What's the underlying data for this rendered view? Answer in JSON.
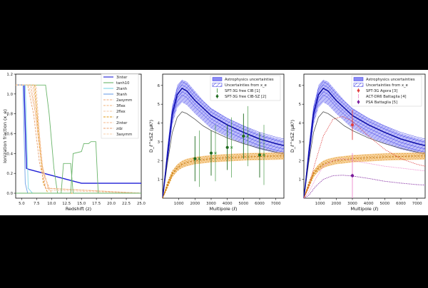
{
  "chart_data": [
    {
      "type": "line",
      "xlabel": "Redshift (z)",
      "ylabel": "Ionization fraction (x_e)",
      "xlim": [
        4,
        25
      ],
      "ylim": [
        -0.05,
        1.2
      ],
      "xticks": [
        "5.0",
        "7.5",
        "10.0",
        "12.5",
        "15.0",
        "17.5",
        "20.0",
        "22.5",
        "25.0"
      ],
      "yticks": [
        "0.0",
        "0.2",
        "0.4",
        "0.6",
        "0.8",
        "1.0",
        "1.2"
      ],
      "legend_position": "top-right",
      "series": [
        {
          "name": "3inter",
          "color": "#1f1fd6",
          "dash": "solid",
          "x": [
            4,
            5.4,
            5.8,
            6.2,
            15,
            15.8,
            25
          ],
          "y": [
            1.09,
            1.09,
            0.25,
            0.24,
            0.1,
            0.1,
            0.1
          ]
        },
        {
          "name": "tanh10",
          "color": "#6ab56a",
          "dash": "solid",
          "x": [
            4,
            9.0,
            9.6,
            10.4,
            11.0,
            25
          ],
          "y": [
            1.09,
            1.09,
            0.8,
            0.25,
            0.0,
            0.0
          ]
        },
        {
          "name": "2tanh",
          "color": "#7fd6e6",
          "dash": "solid",
          "x": [
            4,
            5.6,
            6.1,
            6.8,
            25
          ],
          "y": [
            1.09,
            1.09,
            0.05,
            0.0,
            0.0
          ]
        },
        {
          "name": "3tanh",
          "color": "#6fa0e6",
          "dash": "solid",
          "x": [
            4,
            5.2,
            5.6,
            6.0,
            25
          ],
          "y": [
            1.09,
            1.09,
            0.1,
            0.0,
            0.0
          ]
        },
        {
          "name": "2asymm",
          "color": "#f0a878",
          "dash": "dashed",
          "x": [
            4,
            6.5,
            7.3,
            8.3,
            9.5,
            25
          ],
          "y": [
            1.09,
            1.09,
            0.8,
            0.3,
            0.05,
            0.0
          ]
        },
        {
          "name": "3flex",
          "color": "#f2b57c",
          "dash": "dashed",
          "x": [
            4,
            7.0,
            7.8,
            8.6,
            10.0,
            25
          ],
          "y": [
            1.09,
            1.09,
            0.7,
            0.2,
            0.0,
            0.0
          ]
        },
        {
          "name": "2flex",
          "color": "#f6c8a4",
          "dash": "dashed",
          "x": [
            4,
            6.8,
            7.5,
            8.4,
            9.6,
            25
          ],
          "y": [
            1.09,
            1.09,
            0.75,
            0.25,
            0.03,
            0.0
          ]
        },
        {
          "name": "z",
          "color": "#e09a16",
          "dash": "dashed",
          "x": [
            4,
            7.2,
            7.8,
            8.6,
            9.4,
            25
          ],
          "y": [
            1.09,
            1.09,
            0.6,
            0.1,
            0.0,
            0.0
          ]
        },
        {
          "name": "2inter",
          "color": "#f4b98e",
          "dash": "dashed",
          "x": [
            4,
            7.4,
            8.2,
            9.0,
            25
          ],
          "y": [
            1.09,
            1.09,
            0.4,
            0.05,
            0.0
          ]
        },
        {
          "name": "zdz",
          "color": "#e8a070",
          "dash": "dashed",
          "x": [
            4,
            6.0,
            7.0,
            8.0,
            9.0,
            25
          ],
          "y": [
            1.09,
            1.09,
            0.8,
            0.3,
            0.05,
            0.0
          ]
        },
        {
          "name": "3asymm",
          "color": "#f7cfa8",
          "dash": "dashed",
          "x": [
            4,
            6.2,
            7.2,
            8.2,
            9.4,
            25
          ],
          "y": [
            1.09,
            1.09,
            0.85,
            0.35,
            0.05,
            0.0
          ]
        },
        {
          "name": "",
          "color": "#6ab56a",
          "dash": "solid",
          "x": [
            4,
            13.2,
            13.6,
            15.0,
            15.4,
            16.2,
            16.6,
            17.4,
            17.8,
            25
          ],
          "y": [
            0.0,
            0.0,
            0.4,
            0.42,
            0.5,
            0.5,
            0.52,
            0.52,
            0.0,
            0.0
          ]
        },
        {
          "name": "",
          "color": "#6ab56a",
          "dash": "solid",
          "x": [
            4,
            11.6,
            12.0,
            13.2,
            13.6,
            25
          ],
          "y": [
            0.0,
            0.0,
            0.3,
            0.3,
            0.0,
            0.0
          ]
        }
      ]
    },
    {
      "type": "line",
      "xlabel": "Multipole (ℓ)",
      "ylabel": "D_ℓ^kSZ (μK²)",
      "xlim": [
        0,
        7500
      ],
      "ylim": [
        0,
        6.6
      ],
      "xticks": [
        "1000",
        "2000",
        "3000",
        "4000",
        "5000",
        "6000",
        "7000"
      ],
      "yticks": [
        "1",
        "2",
        "3",
        "4",
        "5",
        "6"
      ],
      "legend_position": "top-right",
      "legend": [
        {
          "label": "Astrophysics uncertainties",
          "kind": "band",
          "color": "#6a6af0"
        },
        {
          "label": "Uncertainties from x_e",
          "kind": "hatch",
          "color": "#5a5ae6"
        },
        {
          "label": "SPT-3G free CIB  [1]",
          "kind": "errorbar",
          "color": "#2e8b2e"
        },
        {
          "label": "SPT-3G free CIB-SZ  [2]",
          "kind": "point",
          "color": "#1d6b1d"
        }
      ],
      "curves": {
        "ell": [
          0,
          300,
          600,
          900,
          1200,
          1500,
          2000,
          2500,
          3000,
          4000,
          5000,
          6000,
          7000,
          7500
        ],
        "blue_center": [
          0.0,
          2.3,
          4.5,
          5.5,
          5.85,
          5.7,
          5.2,
          4.8,
          4.4,
          3.9,
          3.5,
          3.15,
          2.9,
          2.8
        ],
        "blue_upper": [
          0.0,
          2.5,
          4.9,
          6.0,
          6.3,
          6.2,
          5.7,
          5.2,
          4.8,
          4.25,
          3.85,
          3.45,
          3.2,
          3.1
        ],
        "blue_lower": [
          0.0,
          2.0,
          3.9,
          4.8,
          5.1,
          4.95,
          4.5,
          4.1,
          3.7,
          3.25,
          2.9,
          2.6,
          2.4,
          2.3
        ],
        "grey_center": [
          0.0,
          1.9,
          3.5,
          4.3,
          4.6,
          4.5,
          4.2,
          3.85,
          3.6,
          3.2,
          2.9,
          2.65,
          2.45,
          2.35
        ],
        "orange_center": [
          0.0,
          0.7,
          1.3,
          1.6,
          1.8,
          1.9,
          2.0,
          2.05,
          2.1,
          2.15,
          2.2,
          2.22,
          2.24,
          2.25
        ],
        "orange_upper": [
          0.0,
          0.8,
          1.45,
          1.8,
          2.0,
          2.1,
          2.2,
          2.25,
          2.3,
          2.35,
          2.4,
          2.42,
          2.44,
          2.45
        ],
        "orange_lower": [
          0.0,
          0.6,
          1.15,
          1.45,
          1.6,
          1.7,
          1.8,
          1.85,
          1.9,
          1.95,
          2.0,
          2.02,
          2.04,
          2.05
        ]
      },
      "points": [
        {
          "label": "SPT-3G free CIB  [1]",
          "ell": 2000,
          "value": 2.1,
          "err": 1.5,
          "marker": "x"
        },
        {
          "label": "SPT-3G free CIB  [1]",
          "ell": 3000,
          "value": 2.4,
          "err": 1.5,
          "marker": "x"
        },
        {
          "label": "SPT-3G free CIB  [1]",
          "ell": 4000,
          "value": 2.7,
          "err": 1.6,
          "marker": "x"
        },
        {
          "label": "SPT-3G free CIB  [1]",
          "ell": 5000,
          "value": 3.3,
          "err": 1.6,
          "marker": "x"
        },
        {
          "label": "SPT-3G free CIB  [1]",
          "ell": 6000,
          "value": 2.3,
          "err": 1.6,
          "marker": "x"
        },
        {
          "label": "SPT-3G free CIB-SZ  [2]",
          "ell": 2000,
          "value": 2.1,
          "err": 1.2,
          "marker": "dot"
        },
        {
          "label": "SPT-3G free CIB-SZ  [2]",
          "ell": 3000,
          "value": 2.4,
          "err": 1.2,
          "marker": "dot"
        },
        {
          "label": "SPT-3G free CIB-SZ  [2]",
          "ell": 4000,
          "value": 2.7,
          "err": 1.2,
          "marker": "dot"
        },
        {
          "label": "SPT-3G free CIB-SZ  [2]",
          "ell": 5000,
          "value": 3.3,
          "err": 1.2,
          "marker": "dot"
        },
        {
          "label": "SPT-3G free CIB-SZ  [2]",
          "ell": 6000,
          "value": 2.3,
          "err": 1.2,
          "marker": "dot"
        }
      ]
    },
    {
      "type": "line",
      "xlabel": "Multipole (ℓ)",
      "ylabel": "D_ℓ^kSZ (μK²)",
      "xlim": [
        0,
        7500
      ],
      "ylim": [
        0,
        6.6
      ],
      "xticks": [
        "1000",
        "2000",
        "3000",
        "4000",
        "5000",
        "6000",
        "7000"
      ],
      "yticks": [
        "1",
        "2",
        "3",
        "4",
        "5",
        "6"
      ],
      "legend_position": "top-right",
      "legend": [
        {
          "label": "Astrophysics uncertainties",
          "kind": "band",
          "color": "#6a6af0"
        },
        {
          "label": "Uncertainties from x_e",
          "kind": "hatch",
          "color": "#5a5ae6"
        },
        {
          "label": "SPT-3G Agora  [3]",
          "kind": "point",
          "color": "#e04040"
        },
        {
          "label": "ACT-DR6  Battaglia  [4]",
          "kind": "errorbar",
          "color": "#ee88cc"
        },
        {
          "label": "PSA Battaglia  [5]",
          "kind": "point",
          "color": "#7a1a9a"
        }
      ],
      "curves": {
        "ell": [
          0,
          300,
          600,
          900,
          1200,
          1500,
          2000,
          2500,
          3000,
          4000,
          5000,
          6000,
          7000,
          7500
        ],
        "blue_center": [
          0.0,
          2.3,
          4.5,
          5.5,
          5.85,
          5.7,
          5.2,
          4.8,
          4.4,
          3.9,
          3.5,
          3.15,
          2.9,
          2.8
        ],
        "blue_upper": [
          0.0,
          2.5,
          4.9,
          6.0,
          6.3,
          6.2,
          5.7,
          5.2,
          4.8,
          4.25,
          3.85,
          3.45,
          3.2,
          3.1
        ],
        "blue_lower": [
          0.0,
          2.0,
          3.9,
          4.8,
          5.1,
          4.95,
          4.5,
          4.1,
          3.7,
          3.25,
          2.9,
          2.6,
          2.4,
          2.3
        ],
        "grey_center": [
          0.0,
          1.9,
          3.5,
          4.3,
          4.6,
          4.5,
          4.2,
          3.85,
          3.6,
          3.2,
          2.9,
          2.65,
          2.45,
          2.35
        ],
        "orange_center": [
          0.0,
          0.7,
          1.3,
          1.6,
          1.8,
          1.9,
          2.0,
          2.05,
          2.1,
          2.15,
          2.2,
          2.22,
          2.24,
          2.25
        ],
        "orange_upper": [
          0.0,
          0.8,
          1.45,
          1.8,
          2.0,
          2.1,
          2.2,
          2.25,
          2.3,
          2.35,
          2.4,
          2.42,
          2.44,
          2.45
        ],
        "orange_lower": [
          0.0,
          0.6,
          1.15,
          1.45,
          1.6,
          1.7,
          1.8,
          1.85,
          1.9,
          1.95,
          2.0,
          2.02,
          2.04,
          2.05
        ]
      },
      "template_lines": [
        {
          "label": "SPT-3G Agora  [3]",
          "color": "#e04040",
          "ell": [
            0,
            300,
            700,
            1200,
            1800,
            2400,
            3000,
            4000,
            5000,
            6000,
            7000,
            7500
          ],
          "value": [
            0.0,
            0.6,
            1.9,
            3.3,
            4.2,
            4.35,
            4.1,
            3.3,
            2.6,
            2.1,
            1.8,
            1.7
          ]
        },
        {
          "label": "ACT-DR6  Battaglia  [4]",
          "color": "#ee88cc",
          "ell": [
            0,
            300,
            700,
            1200,
            1800,
            2400,
            3000,
            4000,
            5000,
            6000,
            7000,
            7500
          ],
          "value": [
            0.0,
            0.3,
            1.0,
            1.7,
            2.0,
            2.1,
            2.0,
            1.85,
            1.7,
            1.6,
            1.5,
            1.45
          ]
        },
        {
          "label": "PSA Battaglia  [5]",
          "color": "#7a1a9a",
          "ell": [
            0,
            300,
            700,
            1200,
            1800,
            2400,
            3000,
            4000,
            5000,
            6000,
            7000,
            7500
          ],
          "value": [
            0.0,
            0.15,
            0.6,
            1.0,
            1.2,
            1.22,
            1.18,
            1.05,
            0.9,
            0.8,
            0.72,
            0.7
          ]
        }
      ],
      "points": [
        {
          "label": "SPT-3G Agora  [3]",
          "ell": 3000,
          "value": 3.9,
          "err": 0.8,
          "marker": "dot"
        },
        {
          "label": "ACT-DR6  Battaglia  [4]",
          "ell": 3000,
          "value": 1.2,
          "err": 1.2,
          "marker": "tick"
        },
        {
          "label": "PSA Battaglia  [5]",
          "ell": 3000,
          "value": 1.2,
          "err": 0.1,
          "marker": "dot"
        }
      ]
    }
  ]
}
